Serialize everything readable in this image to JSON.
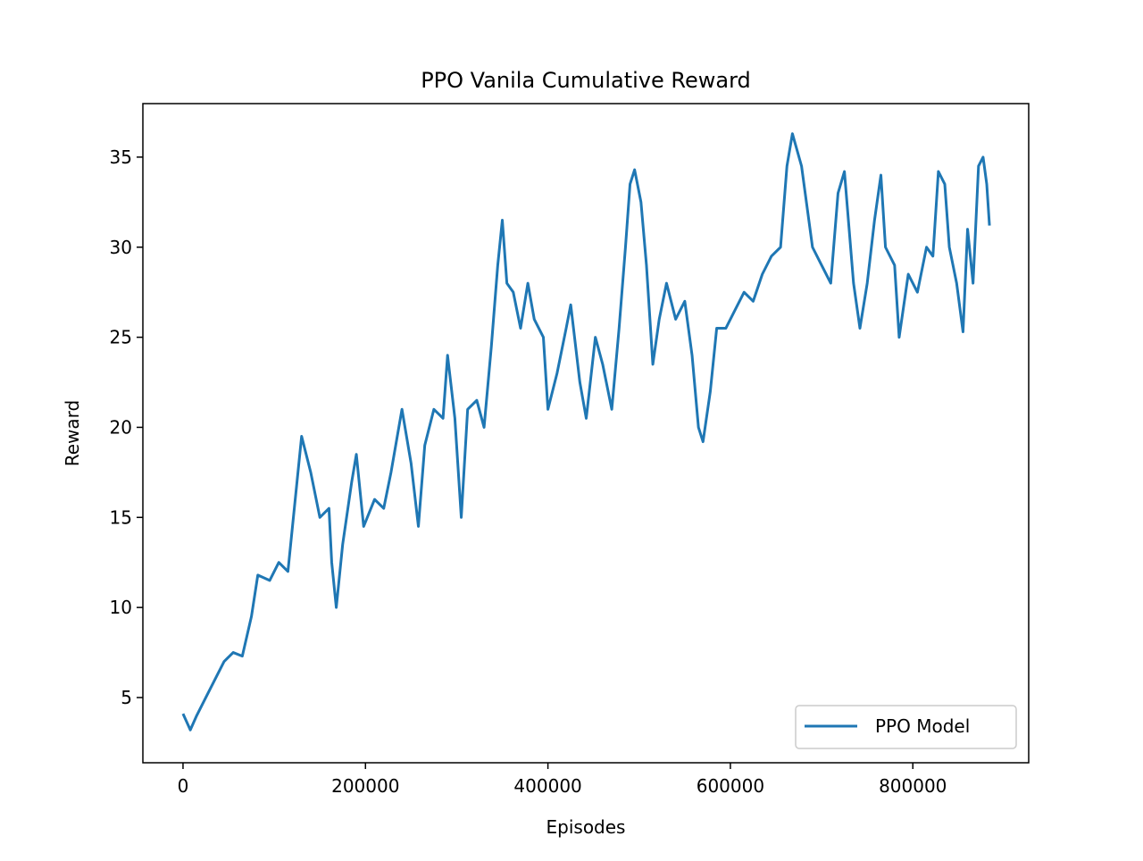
{
  "chart_data": {
    "type": "line",
    "title": "PPO Vanila Cumulative Reward",
    "x_label": "Episodes",
    "y_label": "Reward",
    "x": [
      0,
      8000,
      15000,
      25000,
      35000,
      45000,
      55000,
      65000,
      75000,
      82000,
      95000,
      105000,
      115000,
      125000,
      130000,
      140000,
      150000,
      160000,
      163000,
      168000,
      175000,
      185000,
      190000,
      198000,
      210000,
      220000,
      228000,
      240000,
      250000,
      258000,
      265000,
      275000,
      285000,
      290000,
      298000,
      305000,
      312000,
      322000,
      330000,
      338000,
      345000,
      350000,
      355000,
      362000,
      370000,
      378000,
      385000,
      395000,
      400000,
      410000,
      420000,
      425000,
      435000,
      442000,
      452000,
      460000,
      470000,
      478000,
      485000,
      490000,
      495000,
      502000,
      508000,
      515000,
      522000,
      530000,
      540000,
      550000,
      558000,
      565000,
      570000,
      578000,
      585000,
      595000,
      605000,
      615000,
      625000,
      635000,
      645000,
      655000,
      662000,
      668000,
      678000,
      690000,
      700000,
      710000,
      718000,
      725000,
      735000,
      742000,
      750000,
      758000,
      765000,
      770000,
      780000,
      785000,
      795000,
      805000,
      815000,
      822000,
      828000,
      835000,
      840000,
      848000,
      855000,
      860000,
      866000,
      872000,
      877000,
      881000,
      884000
    ],
    "series": [
      {
        "name": "PPO Model",
        "color": "#1f77b4",
        "values": [
          4.1,
          3.2,
          4.0,
          5.0,
          6.0,
          7.0,
          7.5,
          7.3,
          9.5,
          11.8,
          11.5,
          12.5,
          12.0,
          17.0,
          19.5,
          17.5,
          15.0,
          15.5,
          12.5,
          10.0,
          13.5,
          17.0,
          18.5,
          14.5,
          16.0,
          15.5,
          17.5,
          21.0,
          18.0,
          14.5,
          19.0,
          21.0,
          20.5,
          24.0,
          20.5,
          15.0,
          21.0,
          21.5,
          20.0,
          24.5,
          29.0,
          31.5,
          28.0,
          27.5,
          25.5,
          28.0,
          26.0,
          25.0,
          21.0,
          23.0,
          25.5,
          26.8,
          22.5,
          20.5,
          25.0,
          23.5,
          21.0,
          25.5,
          30.0,
          33.5,
          34.3,
          32.5,
          29.0,
          23.5,
          26.0,
          28.0,
          26.0,
          27.0,
          24.0,
          20.0,
          19.2,
          22.0,
          25.5,
          25.5,
          26.5,
          27.5,
          27.0,
          28.5,
          29.5,
          30.0,
          34.5,
          36.3,
          34.5,
          30.0,
          29.0,
          28.0,
          33.0,
          34.2,
          28.0,
          25.5,
          28.0,
          31.5,
          34.0,
          30.0,
          29.0,
          25.0,
          28.5,
          27.5,
          30.0,
          29.5,
          34.2,
          33.5,
          30.0,
          28.0,
          25.3,
          31.0,
          28.0,
          34.5,
          35.0,
          33.5,
          31.2
        ]
      }
    ],
    "xlim": [
      -44000,
      927000
    ],
    "ylim": [
      1.38,
      37.97
    ],
    "xticks": [
      0,
      200000,
      400000,
      600000,
      800000
    ],
    "yticks": [
      5,
      10,
      15,
      20,
      25,
      30,
      35
    ],
    "grid": false,
    "legend_position": "lower right"
  }
}
